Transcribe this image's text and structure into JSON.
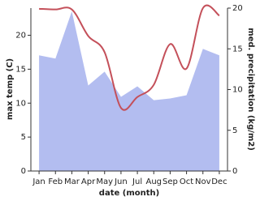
{
  "chart_data": {
    "type": "line",
    "xlabel": "date (month)",
    "ylabel": "max temp (C)",
    "y2label": "med. precipitation (kg/m2)",
    "categories": [
      "Jan",
      "Feb",
      "Mar",
      "Apr",
      "May",
      "Jun",
      "Jul",
      "Aug",
      "Sep",
      "Oct",
      "Nov",
      "Dec"
    ],
    "ylim": [
      0,
      24
    ],
    "yticks": [
      0,
      5,
      10,
      15,
      20
    ],
    "y2lim": [
      0,
      20
    ],
    "y2ticks": [
      0,
      5,
      10,
      15,
      20
    ],
    "series": [
      {
        "color": "#c4505a",
        "values": [
          23.9,
          23.8,
          23.8,
          19.9,
          17.5,
          9.3,
          10.9,
          12.7,
          18.7,
          15.1,
          24.0,
          22.9
        ]
      },
      {
        "color": "#b3bdf0",
        "axis": "y2",
        "values": [
          14.2,
          13.8,
          19.6,
          10.5,
          12.2,
          9.1,
          10.4,
          8.7,
          8.9,
          9.3,
          15.0,
          14.2
        ]
      }
    ]
  }
}
